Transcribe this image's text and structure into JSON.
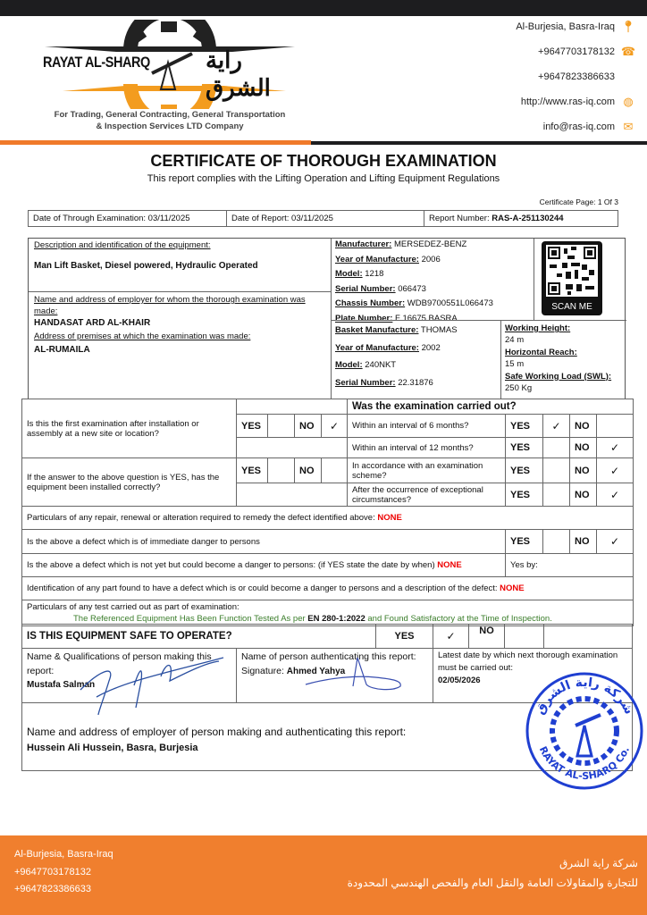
{
  "header": {
    "logo": {
      "name_en": "RAYAT AL-SHARQ",
      "name_ar": "راية الشرق",
      "tagline_1": "For Trading, General Contracting, General Transportation",
      "tagline_2": "& Inspection Services LTD Company"
    },
    "contacts": [
      {
        "icon": "location-pin-icon",
        "text": "Al-Burjesia, Basra-Iraq"
      },
      {
        "icon": "phone-icon",
        "text": "+9647703178132"
      },
      {
        "icon": "",
        "text": "+9647823386633"
      },
      {
        "icon": "globe-icon",
        "text": "http://www.ras-iq.com"
      },
      {
        "icon": "mail-icon",
        "text": "info@ras-iq.com"
      }
    ],
    "colors": {
      "accent": "#f07a2a",
      "dark": "#1d1d1f"
    }
  },
  "document": {
    "title": "CERTIFICATE OF THOROUGH EXAMINATION",
    "subtitle": "This report complies with the Lifting Operation and Lifting Equipment Regulations",
    "page": "Certificate Page: 1 Of 3",
    "info": {
      "exam_date": "Date of Through Examination: 03/11/2025",
      "report_date": "Date of Report: 03/11/2025",
      "report_no_label": "Report Number: ",
      "report_no": "RAS-A-251130244"
    }
  },
  "equipment": {
    "desc_label": "Description and identification of the equipment:",
    "desc": "Man Lift Basket, Diesel powered, Hydraulic Operated",
    "employer_label": "Name and address of employer for whom the thorough examination was made:",
    "employer": "HANDASAT ARD AL-KHAIR",
    "premises_label": "Address of premises at which the examination was made:",
    "premises": "AL-RUMAILA",
    "vehicle": [
      {
        "label": "Manufacturer:",
        "value": " MERSEDEZ-BENZ"
      },
      {
        "label": "Year of Manufacture:",
        "value": " 2006"
      },
      {
        "label": "Model:",
        "value": " 1218"
      },
      {
        "label": "Serial Number:",
        "value": " 066473"
      },
      {
        "label": "Chassis Number:",
        "value": " WDB9700551L066473"
      },
      {
        "label": "Plate Number:",
        "value": " F 16675 BASRA"
      }
    ],
    "basket": [
      {
        "label": "Basket Manufacture:",
        "value": " THOMAS"
      },
      {
        "label": "Year of Manufacture:",
        "value": " 2002"
      },
      {
        "label": "Model:",
        "value": " 240NKT"
      },
      {
        "label": "Serial Number:",
        "value": " 22.31876"
      }
    ],
    "specs": [
      {
        "label": "Working Height:",
        "value": "24 m"
      },
      {
        "label": "Horizontal Reach:",
        "value": "15 m"
      },
      {
        "label": "Safe Working Load (SWL):",
        "value": "250 Kg"
      }
    ],
    "qr_label": "SCAN ME"
  },
  "exam": {
    "yes": "YES",
    "no": "NO",
    "check": "✓",
    "heading": "Was the examination carried out?",
    "q1": "Is this the first examination after installation or assembly at a new site or location?",
    "q1_answer": "NO",
    "q2": "If the answer to the above question is YES, has the equipment been installed correctly?",
    "intervals": [
      {
        "label": "Within an interval of 6 months?",
        "answer": "YES"
      },
      {
        "label": "Within an interval of 12 months?",
        "answer": "NO"
      },
      {
        "label": "In accordance with an examination scheme?",
        "answer": "NO"
      },
      {
        "label": "After the occurrence of exceptional circumstances?",
        "answer": "NO"
      }
    ],
    "repair_label": "Particulars of any repair, renewal or alteration required to remedy the defect identified above: ",
    "repair_value": "NONE",
    "immediate_label": "Is the above a defect which is of immediate danger to persons",
    "immediate_answer": "NO",
    "notyet_label": "Is the above a defect which is not yet but could become a danger to persons: (if YES state the date by when) ",
    "notyet_value": "NONE",
    "yes_by": "Yes by:",
    "ident_label": "Identification of any part found to have a defect which is or could become a danger to persons and a description of the defect: ",
    "ident_value": "NONE",
    "tests_label": "Particulars of any test carried out as part of examination:",
    "tests_pre": "The Referenced Equipment Has Been Function Tested As per ",
    "tests_std": "EN 280-1:2022",
    "tests_post": " and Found Satisfactory at the Time of Inspection.",
    "safe_label": "IS THIS EQUIPMENT SAFE TO OPERATE?",
    "safe_answer": "YES"
  },
  "signatures": {
    "maker_label": "Name & Qualifications of person making this report:",
    "maker": "Mustafa Salman",
    "auth_label": "Name of person authenticating this report:",
    "auth_sig_label": "Signature: ",
    "auth": "Ahmed Yahya",
    "next_label": "Latest date by which next thorough examination must be carried out:",
    "next_date": "02/05/2026",
    "employer_label": "Name and address of employer of person making and authenticating this report:",
    "employer": "Hussein Ali Hussein, Basra, Burjesia",
    "stamp": {
      "text_ar": "شركة راية الشرق",
      "text_en": "RAYAT AL-SHARQ Co.",
      "color": "#1f3fd1"
    }
  },
  "footer": {
    "left": [
      "Al-Burjesia, Basra-Iraq",
      "+9647703178132",
      "+9647823386633"
    ],
    "right_1": "شركة راية الشرق",
    "right_2": "للتجارة والمقاولات العامة والنقل العام والفحص الهندسي المحدودة",
    "color": "#f07f2e"
  }
}
